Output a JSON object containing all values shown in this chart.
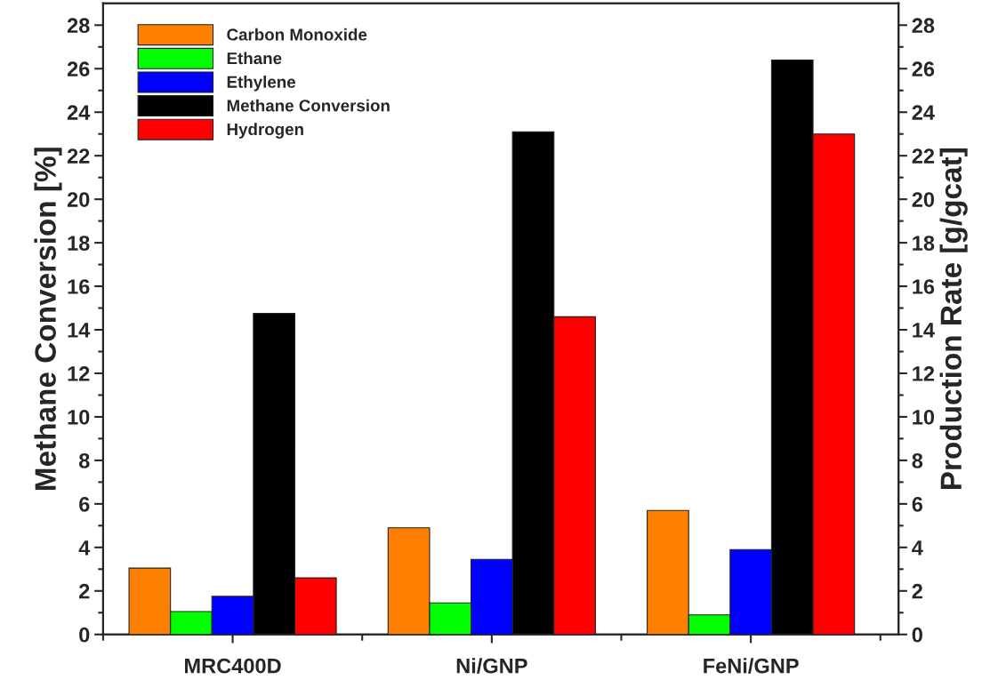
{
  "chart_data": {
    "type": "bar",
    "ylabel": "Methane Conversion [%]",
    "y2label": "Production Rate [g/gcat]",
    "categories": [
      "MRC400D",
      "Ni/GNP",
      "FeNi/GNP"
    ],
    "series": [
      {
        "name": "Carbon Monoxide",
        "color": "#ff8000",
        "axis": "y2",
        "values": [
          3.05,
          4.9,
          5.7
        ]
      },
      {
        "name": "Ethane",
        "color": "#00ff00",
        "axis": "y2",
        "values": [
          1.05,
          1.45,
          0.9
        ]
      },
      {
        "name": "Ethylene",
        "color": "#0000ff",
        "axis": "y2",
        "values": [
          1.75,
          3.45,
          3.9
        ]
      },
      {
        "name": "Methane Conversion",
        "color": "#000000",
        "values": [
          14.75,
          23.1,
          26.4
        ]
      },
      {
        "name": "Hydrogen",
        "color": "#ff0000",
        "axis": "y2",
        "values": [
          2.6,
          14.6,
          23.0
        ]
      }
    ],
    "ylim": [
      0,
      29
    ],
    "yticks": [
      0,
      2,
      4,
      6,
      8,
      10,
      12,
      14,
      16,
      18,
      20,
      22,
      24,
      26,
      28
    ],
    "y2lim": [
      0,
      29
    ],
    "y2ticks": [
      0,
      2,
      4,
      6,
      8,
      10,
      12,
      14,
      16,
      18,
      20,
      22,
      24,
      26,
      28
    ],
    "legend": "top left",
    "grid": false
  }
}
